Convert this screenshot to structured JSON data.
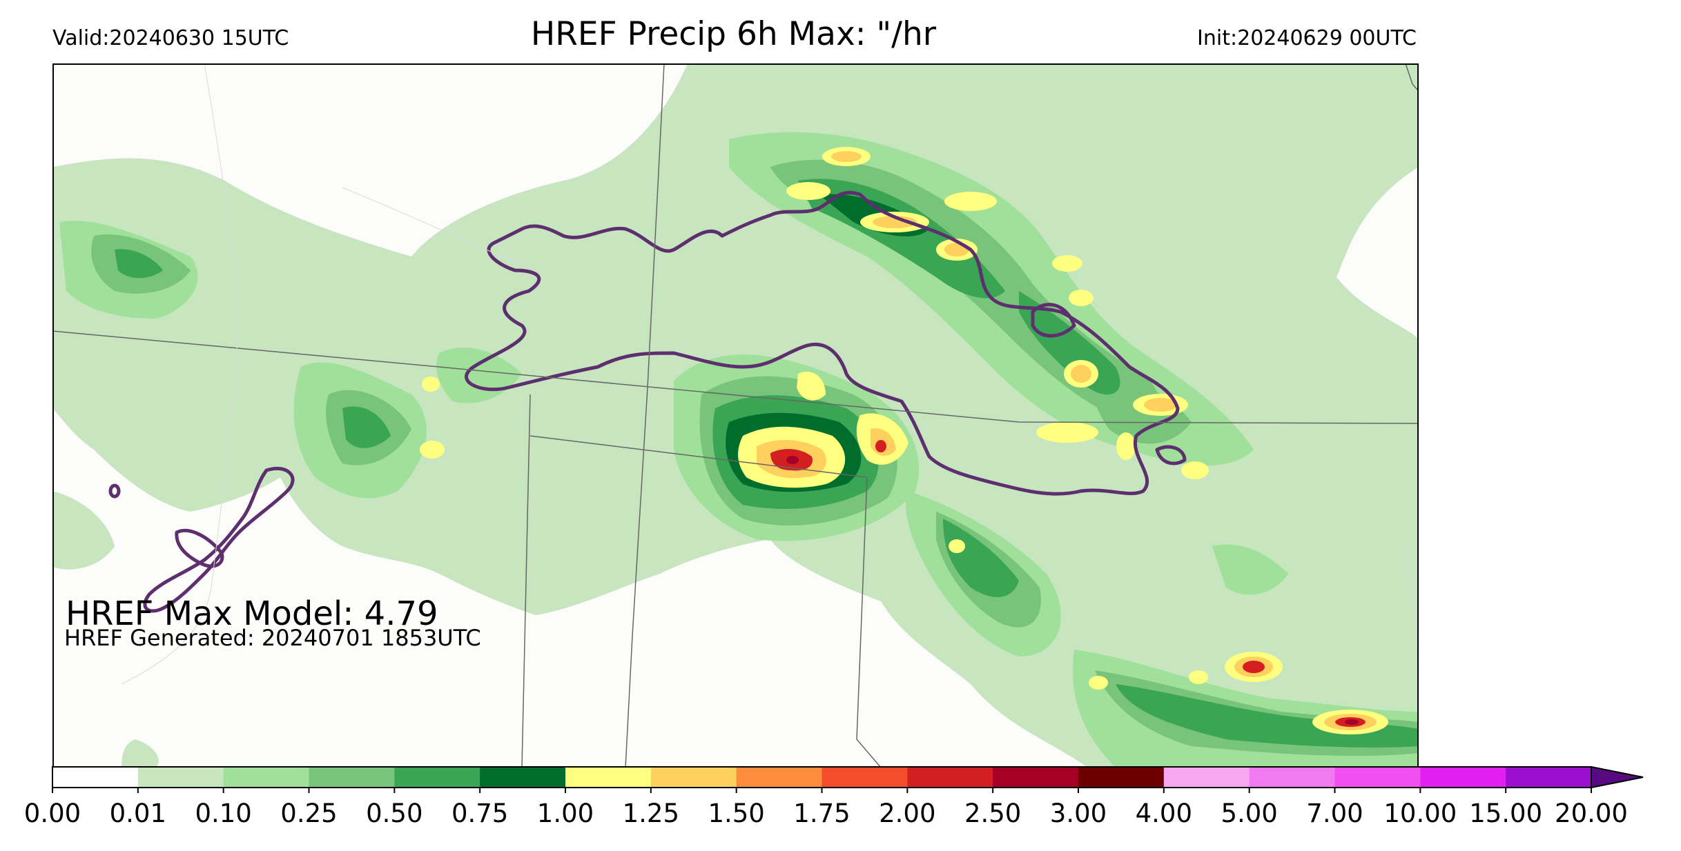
{
  "header": {
    "valid_label": "Valid:20240630 15UTC",
    "title": "HREF Precip 6h Max: \"/hr",
    "init_label": "Init:20240629 00UTC"
  },
  "annotations": {
    "max_model": "HREF Max Model: 4.79",
    "generated": "HREF Generated: 20240701 1853UTC"
  },
  "colorbar": {
    "ticks": [
      "0.00",
      "0.01",
      "0.10",
      "0.25",
      "0.50",
      "0.75",
      "1.00",
      "1.25",
      "1.50",
      "1.75",
      "2.00",
      "2.50",
      "3.00",
      "4.00",
      "5.00",
      "7.00",
      "10.00",
      "15.00",
      "20.00"
    ],
    "colors": [
      "#ffffff",
      "#c7e6c0",
      "#a0e09a",
      "#78c47a",
      "#3aa655",
      "#006d2c",
      "#ffff80",
      "#fed15e",
      "#fd8d3c",
      "#f44d2c",
      "#d41f20",
      "#a50026",
      "#6b0000",
      "#f8a8f0",
      "#f07af0",
      "#f050f0",
      "#e020f0",
      "#9a10d0"
    ],
    "extend_color": "#5a0a80"
  },
  "colors": {
    "light_green": "#c7e6c0",
    "mid_green": "#a0e09a",
    "green": "#78c47a",
    "dark_green": "#3aa655",
    "deepest_green": "#006d2c",
    "yellow": "#ffff80",
    "orange": "#fed15e",
    "red": "#d41f20",
    "contour_purple": "#5e2f6e",
    "background": "#fcfcfa"
  }
}
